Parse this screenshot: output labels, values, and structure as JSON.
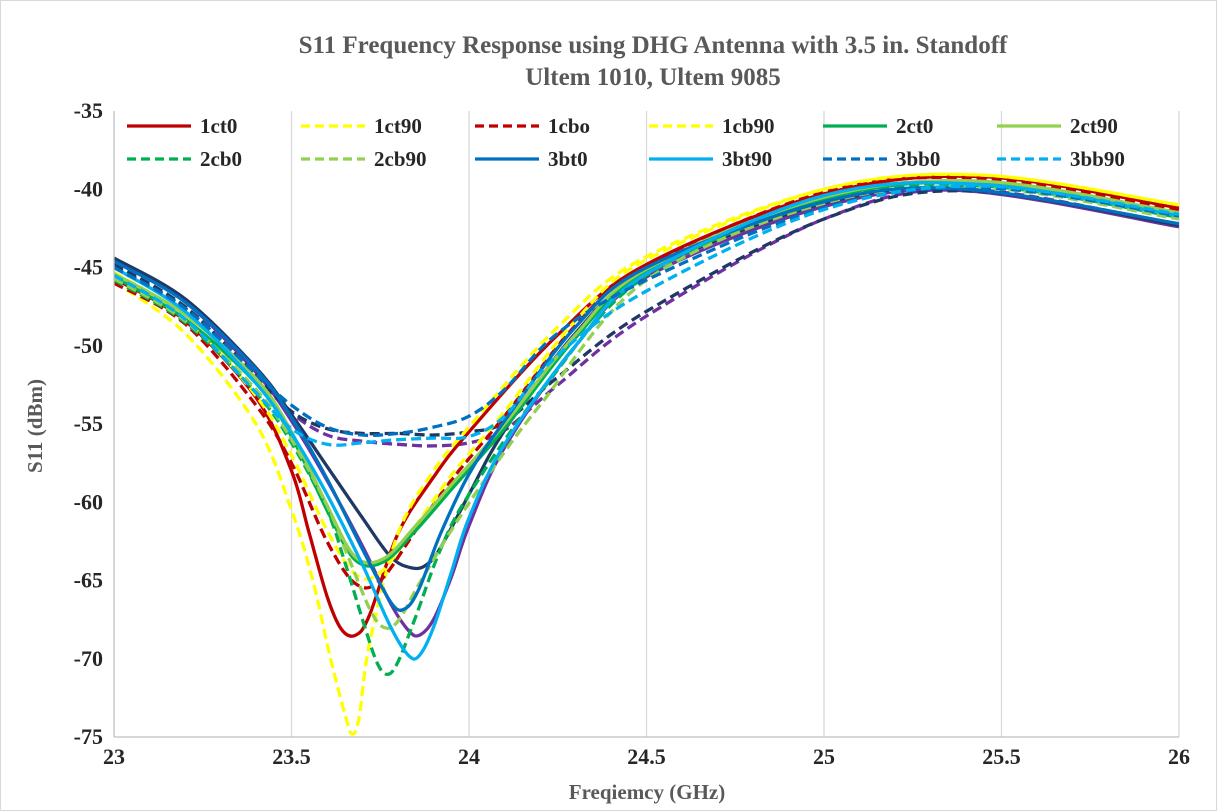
{
  "chart_data": {
    "type": "line",
    "title": "S11 Frequency Response using DHG Antenna with 3.5 in. Standoff",
    "subtitle": "Ultem 1010, Ultem 9085",
    "xlabel": "Freqiemcy (GHz)",
    "ylabel": "S11 (dBm)",
    "xlim": [
      23,
      26
    ],
    "ylim": [
      -75,
      -35
    ],
    "xticks": [
      "23",
      "23.5",
      "24",
      "24.5",
      "25",
      "25.5",
      "26"
    ],
    "yticks": [
      "-35",
      "-40",
      "-45",
      "-50",
      "-55",
      "-60",
      "-65",
      "-70",
      "-75"
    ],
    "grid": "vertical",
    "legend": "top",
    "series": [
      {
        "name": "1ct0",
        "color": "#c00000",
        "dash": "solid",
        "x": [
          23,
          23.2,
          23.4,
          23.5,
          23.55,
          23.6,
          23.64,
          23.68,
          23.72,
          23.8,
          23.9,
          24,
          24.25,
          24.5,
          25,
          25.45,
          26
        ],
        "y": [
          -45.7,
          -48.4,
          -53.3,
          -58,
          -62,
          -66,
          -68.1,
          -68.5,
          -67.2,
          -62,
          -58.4,
          -55.5,
          -49.3,
          -44.8,
          -40.3,
          -39.2,
          -41.2
        ]
      },
      {
        "name": "1ct90",
        "color": "#ffff00",
        "dash": "dash",
        "x": [
          23,
          23.2,
          23.4,
          23.5,
          23.56,
          23.61,
          23.65,
          23.67,
          23.69,
          23.72,
          23.8,
          23.9,
          24,
          24.25,
          24.5,
          25,
          25.45,
          26
        ],
        "y": [
          -45.9,
          -49.2,
          -55,
          -60.5,
          -65,
          -70,
          -73.5,
          -74.8,
          -73.8,
          -69,
          -62,
          -58,
          -55.2,
          -48.8,
          -44.3,
          -40,
          -39.1,
          -41
        ]
      },
      {
        "name": "1cbo",
        "color": "#c00000",
        "dash": "dash",
        "x": [
          23,
          23.2,
          23.4,
          23.5,
          23.6,
          23.68,
          23.75,
          23.85,
          23.95,
          24.1,
          24.3,
          24.5,
          25,
          25.45,
          26
        ],
        "y": [
          -46,
          -48.6,
          -53.8,
          -57.5,
          -62.5,
          -65.2,
          -65,
          -61.8,
          -58.6,
          -54.5,
          -48.7,
          -44.9,
          -40.2,
          -39.3,
          -41.3
        ]
      },
      {
        "name": "1cb90",
        "color": "#ffff00",
        "dash": "dash",
        "x": [
          23,
          23.2,
          23.4,
          23.5,
          23.6,
          23.68,
          23.75,
          23.85,
          23.95,
          24.1,
          24.3,
          24.5,
          25,
          25.45,
          26
        ],
        "y": [
          -45.3,
          -48.2,
          -53.2,
          -57,
          -61.8,
          -64.6,
          -64.5,
          -61.5,
          -58.3,
          -54.2,
          -48.4,
          -44.5,
          -40,
          -39.1,
          -41
        ]
      },
      {
        "name": "2ct0",
        "color": "#00b050",
        "dash": "solid",
        "x": [
          23,
          23.2,
          23.4,
          23.5,
          23.6,
          23.68,
          23.76,
          23.85,
          23.95,
          24.1,
          24.3,
          24.5,
          25,
          25.45,
          26
        ],
        "y": [
          -45.6,
          -48.3,
          -52.4,
          -55.8,
          -60.5,
          -63.7,
          -63.8,
          -61.8,
          -59.2,
          -55.3,
          -49.5,
          -45.3,
          -40.6,
          -39.6,
          -41.6
        ]
      },
      {
        "name": "2ct90",
        "color": "#92d050",
        "dash": "solid",
        "x": [
          23,
          23.2,
          23.4,
          23.5,
          23.6,
          23.68,
          23.76,
          23.85,
          23.95,
          24.1,
          24.3,
          24.5,
          25,
          25.45,
          26
        ],
        "y": [
          -45.4,
          -48,
          -52.1,
          -55.5,
          -60.2,
          -63.5,
          -63.6,
          -61.5,
          -58.9,
          -55,
          -49.3,
          -45.1,
          -40.5,
          -39.5,
          -41.5
        ]
      },
      {
        "name": "2cb0",
        "color": "#00b050",
        "dash": "dash",
        "x": [
          23,
          23.2,
          23.4,
          23.5,
          23.6,
          23.65,
          23.7,
          23.74,
          23.77,
          23.8,
          23.85,
          23.92,
          24,
          24.2,
          24.5,
          25,
          25.45,
          26
        ],
        "y": [
          -45.8,
          -48.5,
          -53,
          -56.2,
          -60.5,
          -63.8,
          -67.5,
          -70.2,
          -71,
          -70.2,
          -67.3,
          -63,
          -59.5,
          -53,
          -45.5,
          -40.8,
          -39.8,
          -41.8
        ]
      },
      {
        "name": "2cb90",
        "color": "#92d050",
        "dash": "dash",
        "x": [
          23,
          23.2,
          23.4,
          23.5,
          23.6,
          23.66,
          23.72,
          23.76,
          23.8,
          23.86,
          23.95,
          24.05,
          24.2,
          24.5,
          25,
          25.45,
          26
        ],
        "y": [
          -45.7,
          -48.4,
          -52.8,
          -56,
          -60.2,
          -63.5,
          -66.8,
          -68,
          -67.6,
          -65.2,
          -61.8,
          -58.4,
          -53.8,
          -45.8,
          -40.9,
          -39.9,
          -41.9
        ]
      },
      {
        "name": "3bt0",
        "color": "#0070c0",
        "dash": "solid",
        "x": [
          23,
          23.2,
          23.4,
          23.5,
          23.6,
          23.7,
          23.78,
          23.82,
          23.86,
          23.92,
          24,
          24.1,
          24.3,
          24.5,
          25,
          25.4,
          26
        ],
        "y": [
          -44.6,
          -47.2,
          -51.5,
          -54.6,
          -58.5,
          -63,
          -66.4,
          -66.8,
          -65.5,
          -62,
          -58.2,
          -54.8,
          -48.8,
          -45,
          -40.8,
          -40,
          -42.2
        ]
      },
      {
        "name": "3bt90",
        "color": "#00b0f0",
        "dash": "solid",
        "x": [
          23,
          23.2,
          23.4,
          23.5,
          23.6,
          23.7,
          23.78,
          23.83,
          23.86,
          23.9,
          23.95,
          24,
          24.1,
          24.3,
          24.5,
          25,
          25.45,
          26
        ],
        "y": [
          -45,
          -47.8,
          -52.4,
          -55.6,
          -59.5,
          -64,
          -68,
          -69.8,
          -69.8,
          -68,
          -64.5,
          -61,
          -56.3,
          -50,
          -45.4,
          -40.4,
          -39.7,
          -41.7
        ]
      },
      {
        "name": "3bb0",
        "color": "#0070c0",
        "dash": "dash",
        "x": [
          23,
          23.2,
          23.4,
          23.5,
          23.6,
          23.7,
          23.8,
          23.9,
          24,
          24.1,
          24.25,
          24.5,
          25,
          25.45,
          26
        ],
        "y": [
          -45,
          -47.6,
          -51.8,
          -53.8,
          -55.2,
          -55.7,
          -55.6,
          -55.2,
          -54.5,
          -52.8,
          -49.2,
          -45.8,
          -41.2,
          -39.9,
          -41.7
        ]
      },
      {
        "name": "3bb90",
        "color": "#00b0f0",
        "dash": "dash",
        "x": [
          23,
          23.2,
          23.4,
          23.5,
          23.6,
          23.7,
          23.8,
          23.9,
          24,
          24.1,
          24.25,
          24.5,
          25,
          25.45,
          26
        ],
        "y": [
          -45.5,
          -48.3,
          -53,
          -55.3,
          -56.3,
          -56.2,
          -56,
          -55.9,
          -55.8,
          -54.5,
          -50.6,
          -46.5,
          -41.3,
          -39.8,
          -41.6
        ]
      },
      {
        "name": "",
        "color": "#7030a0",
        "dash": "solid",
        "x": [
          23,
          23.2,
          23.4,
          23.5,
          23.6,
          23.7,
          23.78,
          23.83,
          23.86,
          23.9,
          23.95,
          24,
          24.1,
          24.3,
          24.5,
          25,
          25.4,
          26
        ],
        "y": [
          -44.5,
          -47.2,
          -51.7,
          -54.8,
          -58.6,
          -62.8,
          -66.5,
          -68.2,
          -68.5,
          -67.5,
          -64.8,
          -61.5,
          -56.5,
          -50,
          -45.6,
          -41.1,
          -40.1,
          -42.4
        ]
      },
      {
        "name": "",
        "color": "#7030a0",
        "dash": "dash",
        "x": [
          23,
          23.2,
          23.4,
          23.5,
          23.6,
          23.7,
          23.8,
          23.9,
          24,
          24.1,
          24.25,
          24.5,
          25,
          25.4,
          26
        ],
        "y": [
          -44.9,
          -47.6,
          -52,
          -54.3,
          -55.7,
          -56.1,
          -56.3,
          -56.4,
          -56.2,
          -55.4,
          -52.5,
          -48.1,
          -41.9,
          -40,
          -42.3
        ]
      },
      {
        "name": "",
        "color": "#1f3864",
        "dash": "solid",
        "x": [
          23,
          23.2,
          23.4,
          23.5,
          23.6,
          23.7,
          23.78,
          23.84,
          23.88,
          23.92,
          24,
          24.1,
          24.3,
          24.5,
          25,
          25.4,
          26
        ],
        "y": [
          -44.4,
          -47,
          -51.4,
          -54.4,
          -57.7,
          -61,
          -63.5,
          -64.2,
          -64,
          -62.9,
          -59.5,
          -55.4,
          -49.2,
          -45.3,
          -40.9,
          -40,
          -42.3
        ]
      },
      {
        "name": "",
        "color": "#1f3864",
        "dash": "dash",
        "x": [
          23,
          23.2,
          23.4,
          23.5,
          23.6,
          23.7,
          23.8,
          23.9,
          24,
          24.1,
          24.25,
          24.5,
          25,
          25.4,
          26
        ],
        "y": [
          -44.8,
          -47.5,
          -51.9,
          -54.2,
          -55.3,
          -55.6,
          -55.6,
          -55.7,
          -55.5,
          -54.9,
          -52,
          -47.8,
          -41.9,
          -40.1,
          -42.3
        ]
      }
    ]
  }
}
